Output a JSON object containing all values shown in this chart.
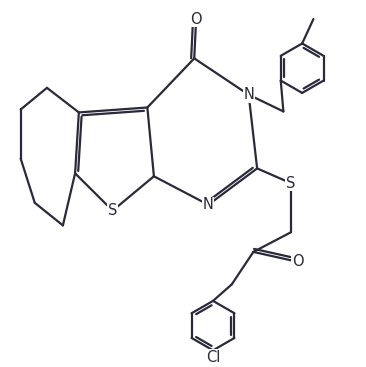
{
  "bg_color": "#ffffff",
  "line_color": "#2a2a3a",
  "line_width": 1.6,
  "font_size": 10.5,
  "figsize": [
    3.66,
    3.67
  ],
  "dpi": 100,
  "xlim": [
    0,
    10
  ],
  "ylim": [
    0,
    10.5
  ]
}
